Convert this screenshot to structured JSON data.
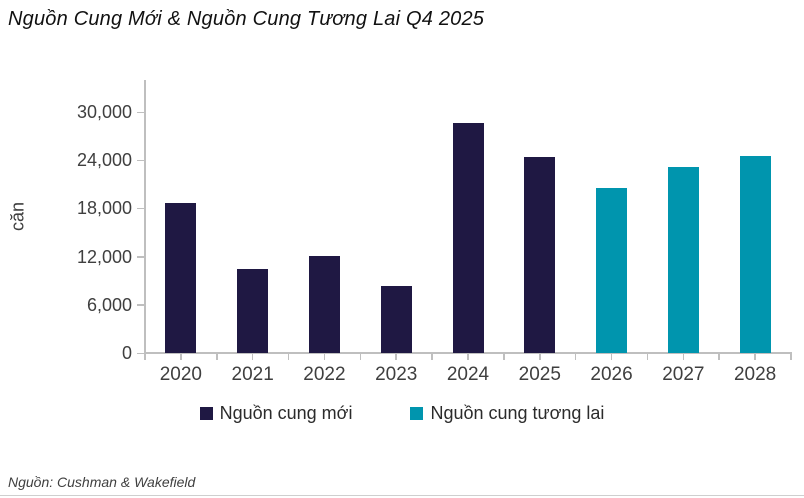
{
  "title": "Nguồn Cung Mới & Nguồn Cung Tương Lai Q4 2025",
  "source_note": "Nguồn: Cushman & Wakefield",
  "colors": {
    "new_supply": "#1f1843",
    "future_supply": "#0095ae",
    "axis": "#bfbfbf",
    "tick_text": "#3f3f3f"
  },
  "chart_data": {
    "type": "bar",
    "title": "Nguồn Cung Mới & Nguồn Cung Tương Lai Q4 2025",
    "categories": [
      "2020",
      "2021",
      "2022",
      "2023",
      "2024",
      "2025",
      "2026",
      "2027",
      "2028"
    ],
    "series": [
      {
        "name": "Nguồn cung mới",
        "color": "#1f1843",
        "values": [
          18700,
          10400,
          12100,
          8300,
          28600,
          24400,
          null,
          null,
          null
        ]
      },
      {
        "name": "Nguồn cung tương lai",
        "color": "#0095ae",
        "values": [
          null,
          null,
          null,
          null,
          null,
          null,
          20500,
          23100,
          24500
        ]
      }
    ],
    "xlabel": "",
    "ylabel": "căn",
    "ylim": [
      0,
      30000
    ],
    "ytick_values": [
      0,
      6000,
      12000,
      18000,
      24000,
      30000
    ],
    "ytick_labels": [
      "0",
      "6,000",
      "12,000",
      "18,000",
      "24,000",
      "30,000"
    ],
    "grid": false,
    "legend_position": "bottom"
  }
}
